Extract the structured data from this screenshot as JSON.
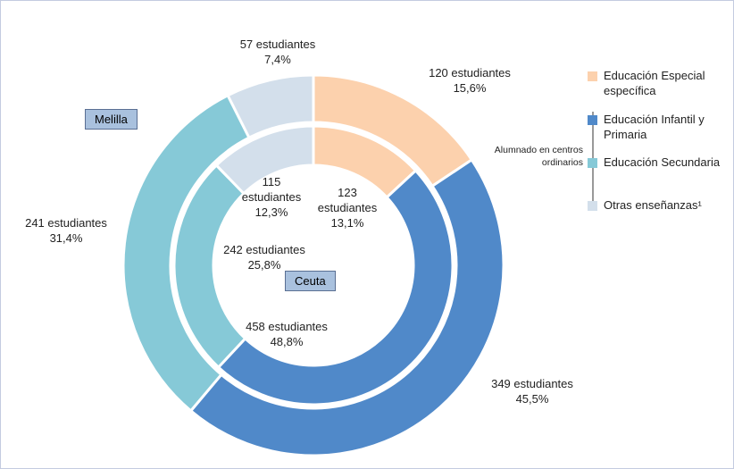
{
  "chart_data": {
    "type": "donut",
    "categories": [
      "Educación Especial específica",
      "Educación Infantil y Primaria",
      "Educación Secundaria",
      "Otras enseñanzas¹"
    ],
    "colors": [
      "#fcd1ad",
      "#5089c9",
      "#86c9d7",
      "#d3dfeb"
    ],
    "annotation": "Alumnado en centros ordinarios",
    "series": [
      {
        "name": "Melilla",
        "values": [
          120,
          349,
          241,
          57
        ],
        "value_labels": [
          "120 estudiantes",
          "349 estudiantes",
          "241 estudiantes",
          "57 estudiantes"
        ],
        "percents": [
          15.6,
          45.5,
          31.4,
          7.4
        ],
        "percent_labels": [
          "15,6%",
          "45,5%",
          "31,4%",
          "7,4%"
        ]
      },
      {
        "name": "Ceuta",
        "values": [
          123,
          458,
          242,
          115
        ],
        "value_labels": [
          "123 estudiantes",
          "458 estudiantes",
          "242 estudiantes",
          "115 estudiantes"
        ],
        "percents": [
          13.1,
          48.8,
          25.8,
          12.3
        ],
        "percent_labels": [
          "13,1%",
          "48,8%",
          "25,8%",
          "12,3%"
        ]
      }
    ]
  }
}
